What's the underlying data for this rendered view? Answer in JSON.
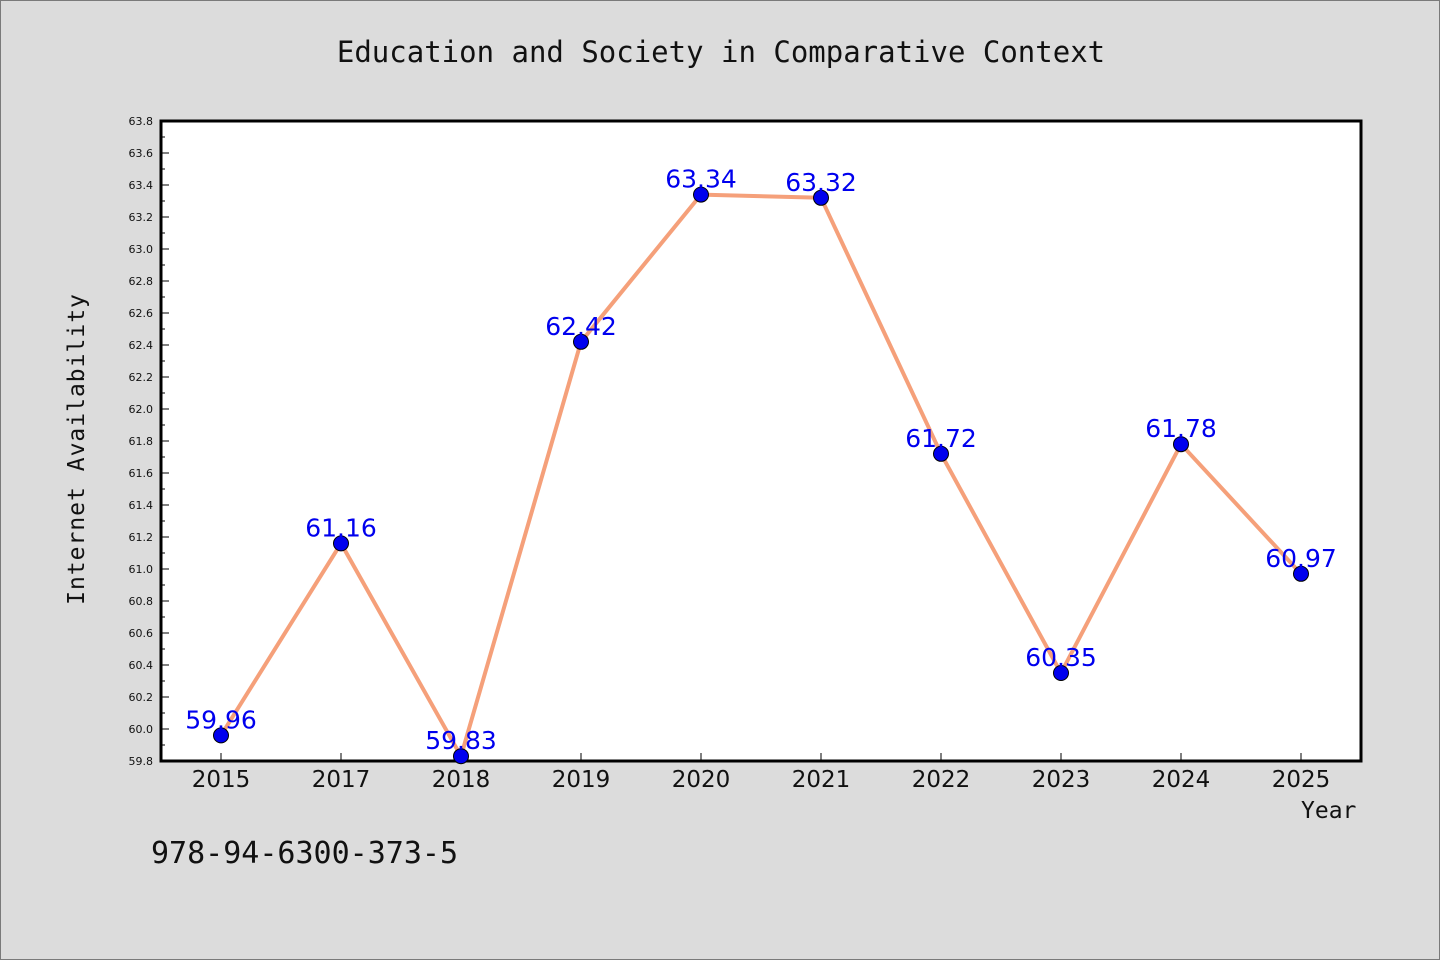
{
  "chart_data": {
    "type": "line",
    "title": "Education and Society in Comparative Context",
    "xlabel": "Year",
    "ylabel": "Internet Availability",
    "categories": [
      "2015",
      "2017",
      "2018",
      "2019",
      "2020",
      "2021",
      "2022",
      "2023",
      "2024",
      "2025"
    ],
    "values": [
      59.96,
      61.16,
      59.83,
      62.42,
      63.34,
      63.32,
      61.72,
      60.35,
      61.78,
      60.97
    ],
    "data_labels": [
      "59.96",
      "61.16",
      "59.83",
      "62.42",
      "63.34",
      "63.32",
      "61.72",
      "60.35",
      "61.78",
      "60.97"
    ],
    "ylim": [
      59.8,
      63.8
    ],
    "yticks": [
      "59.8",
      "60.0",
      "60.2",
      "60.4",
      "60.6",
      "60.8",
      "61.0",
      "61.2",
      "61.4",
      "61.6",
      "61.8",
      "62.0",
      "62.2",
      "62.4",
      "62.6",
      "62.8",
      "63.0",
      "63.2",
      "63.4",
      "63.6",
      "63.8"
    ],
    "grid": false,
    "legend": "none",
    "line_color": "#f5a07a",
    "marker_color": "#0000ee",
    "label_color": "#0000ee",
    "background_color": "#dcdcdc",
    "plot_background_color": "#ffffff"
  },
  "footer": {
    "code": "978-94-6300-373-5"
  }
}
